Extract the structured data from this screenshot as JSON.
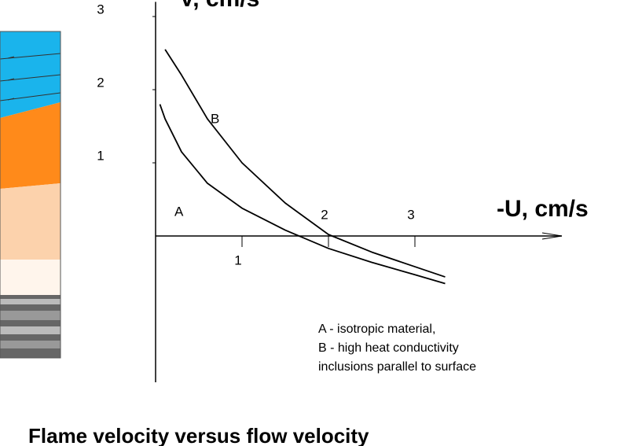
{
  "chart_data": {
    "type": "line",
    "title": "Flame velocity versus flow velocity",
    "x_label": "-U, cm/s",
    "y_label": "V, cm/s",
    "x": [
      0.05,
      0.11,
      0.3,
      0.6,
      1,
      1.5,
      2,
      2.5,
      3,
      3.35
    ],
    "series": [
      {
        "name": "A",
        "color": "#000000",
        "values": [
          1.8,
          1.6,
          1.15,
          0.72,
          0.38,
          0.08,
          -0.17,
          -0.36,
          -0.53,
          -0.65
        ]
      },
      {
        "name": "B",
        "color": "#000000",
        "values": [
          null,
          2.55,
          2.2,
          1.6,
          1.0,
          0.45,
          0.02,
          -0.22,
          -0.42,
          -0.56
        ]
      }
    ],
    "xlim": [
      0,
      4.7
    ],
    "ylim": [
      -2,
      3.2
    ],
    "xticks": [
      1,
      2,
      3
    ],
    "yticks": [
      1,
      2,
      3
    ],
    "legend_lines": [
      "A - isotropic material,",
      "B - high heat conductivity",
      "inclusions parallel to surface"
    ]
  }
}
